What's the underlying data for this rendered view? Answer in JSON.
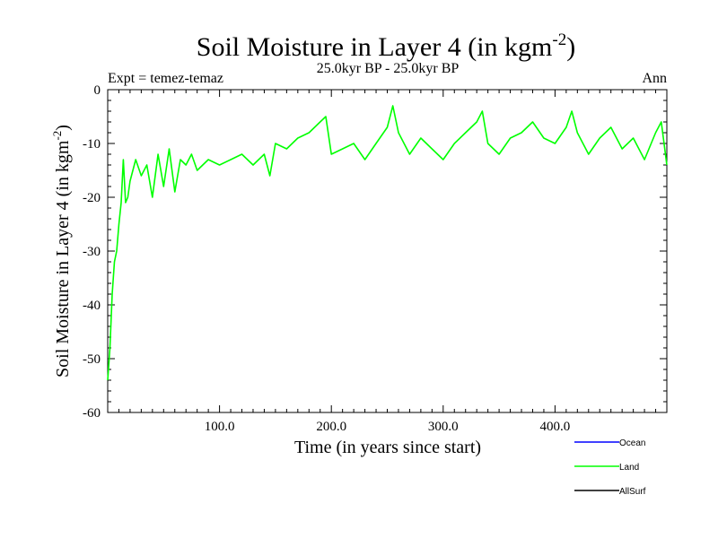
{
  "chart_data": {
    "type": "line",
    "title_main": "Soil Moisture in Layer 4 (in kgm",
    "title_sup": "-2",
    "title_close": ")",
    "subtitle": "25.0kyr BP - 25.0kyr BP",
    "expt_label": "Expt = temez-temaz",
    "period_label": "Ann",
    "xlabel": "Time (in years since start)",
    "ylabel_main": "Soil Moisture in Layer 4 (in kgm",
    "ylabel_sup": "-2",
    "ylabel_close": ")",
    "xlim": [
      0,
      500
    ],
    "ylim": [
      -60,
      0
    ],
    "x_ticks": [
      100,
      200,
      300,
      400
    ],
    "x_tick_labels": [
      "100.0",
      "200.0",
      "300.0",
      "400.0"
    ],
    "y_ticks": [
      0,
      -10,
      -20,
      -30,
      -40,
      -50,
      -60
    ],
    "y_tick_labels": [
      "0",
      "-10",
      "-20",
      "-30",
      "-40",
      "-50",
      "-60"
    ],
    "legend": [
      {
        "name": "Ocean",
        "color": "#0000ff"
      },
      {
        "name": "Land",
        "color": "#00ff00"
      },
      {
        "name": "AllSurf",
        "color": "#000000"
      }
    ],
    "series": [
      {
        "name": "Land",
        "color": "#00ff00",
        "x": [
          0,
          2,
          4,
          6,
          8,
          10,
          12,
          14,
          16,
          18,
          20,
          25,
          30,
          35,
          40,
          45,
          50,
          55,
          60,
          65,
          70,
          75,
          80,
          90,
          100,
          110,
          120,
          130,
          140,
          145,
          150,
          160,
          170,
          180,
          190,
          195,
          200,
          210,
          220,
          230,
          240,
          250,
          255,
          260,
          270,
          280,
          290,
          300,
          310,
          320,
          330,
          335,
          340,
          350,
          360,
          370,
          380,
          390,
          400,
          410,
          415,
          420,
          430,
          440,
          450,
          460,
          470,
          480,
          490,
          495,
          500
        ],
        "y": [
          -54,
          -48,
          -38,
          -32,
          -30,
          -25,
          -21,
          -13,
          -21,
          -20,
          -17,
          -13,
          -16,
          -14,
          -20,
          -12,
          -18,
          -11,
          -19,
          -13,
          -14,
          -12,
          -15,
          -13,
          -14,
          -13,
          -12,
          -14,
          -12,
          -16,
          -10,
          -11,
          -9,
          -8,
          -6,
          -5,
          -12,
          -11,
          -10,
          -13,
          -10,
          -7,
          -3,
          -8,
          -12,
          -9,
          -11,
          -13,
          -10,
          -8,
          -6,
          -4,
          -10,
          -12,
          -9,
          -8,
          -6,
          -9,
          -10,
          -7,
          -4,
          -8,
          -12,
          -9,
          -7,
          -11,
          -9,
          -13,
          -8,
          -6,
          -14
        ]
      }
    ]
  }
}
